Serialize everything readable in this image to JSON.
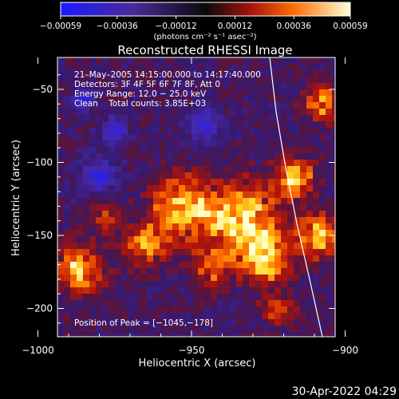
{
  "chart_data": {
    "type": "heatmap",
    "title": "Reconstructed RHESSI Image",
    "xlabel": "Heliocentric X (arcsec)",
    "ylabel": "Heliocentric Y (arcsec)",
    "xlim": [
      -1040,
      -950
    ],
    "ylim": [
      -220,
      -40
    ],
    "xticks": [
      -1000,
      -950,
      -900
    ],
    "xtick_labels": [
      "−1000",
      "−950",
      "−900"
    ],
    "yticks": [
      -50,
      -100,
      -150,
      -200
    ],
    "ytick_labels": [
      "−50",
      "−100",
      "−150",
      "−200"
    ],
    "colorbar": {
      "range": [
        -0.00059,
        0.00059
      ],
      "ticks": [
        -0.00059,
        -0.00036,
        -0.00012,
        0.00012,
        0.00036,
        0.00059
      ],
      "tick_labels": [
        "−0.00059",
        "−0.00036",
        "−0.00012",
        "0.00012",
        "0.00036",
        "0.00059"
      ],
      "unit_label": "(photons cm⁻² s⁻¹ asec⁻²)"
    },
    "annotations": [
      "21–May–2005 14:15:00.000 to 14:17:40.000",
      "Detectors: 3F 4F 5F 6F 7F 8F, Att 0",
      "Energy Range: 12.0 − 25.0 keV",
      "Clean    Total counts: 3.85E+03"
    ],
    "peak_label": "Position of Peak = [−1045,−178]",
    "grid": false
  },
  "footer": {
    "timestamp": "30-Apr-2022 04:29"
  }
}
